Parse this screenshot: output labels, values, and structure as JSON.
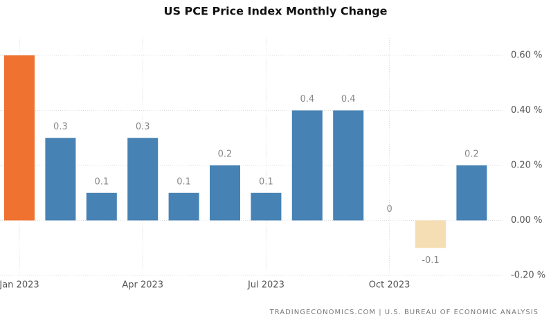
{
  "chart_data": {
    "type": "bar",
    "title": "US PCE Price Index Monthly Change",
    "source": "TRADINGECONOMICS.COM | U.S. BUREAU OF ECONOMIC ANALYSIS",
    "categories": [
      "Jan 2023",
      null,
      null,
      "Apr 2023",
      null,
      null,
      "Jul 2023",
      null,
      null,
      "Oct 2023",
      null,
      null
    ],
    "values": [
      0.6,
      0.3,
      0.1,
      0.3,
      0.1,
      0.2,
      0.1,
      0.4,
      0.4,
      0,
      -0.1,
      0.2
    ],
    "value_labels": [
      null,
      "0.3",
      "0.1",
      "0.3",
      "0.1",
      "0.2",
      "0.1",
      "0.4",
      "0.4",
      "0",
      "-0.1",
      "0.2"
    ],
    "colors": [
      "#ef7230",
      "#4682b4",
      "#4682b4",
      "#4682b4",
      "#4682b4",
      "#4682b4",
      "#4682b4",
      "#4682b4",
      "#4682b4",
      "#4682b4",
      "#f5deb3",
      "#4682b4"
    ],
    "ylim": [
      -0.2,
      0.6
    ],
    "yticks": [
      {
        "value": -0.2,
        "label": "-0.20 %"
      },
      {
        "value": 0,
        "label": "0.00 %"
      },
      {
        "value": 0.2,
        "label": "0.20 %"
      },
      {
        "value": 0.4,
        "label": "0.40 %"
      },
      {
        "value": 0.6,
        "label": "0.60 %"
      }
    ],
    "grid": true
  }
}
